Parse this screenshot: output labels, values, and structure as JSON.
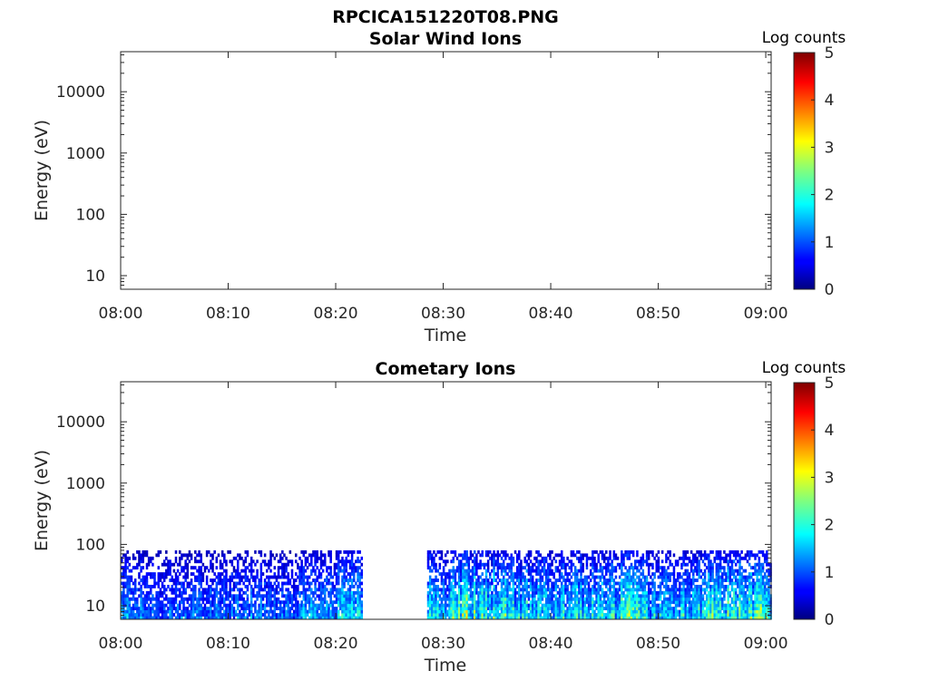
{
  "figure": {
    "title": "RPCICA151220T08.PNG"
  },
  "panels": [
    {
      "title": "Solar Wind Ions",
      "xlabel": "Time",
      "ylabel": "Energy (eV)",
      "colorbar_title": "Log counts"
    },
    {
      "title": "Cometary Ions",
      "xlabel": "Time",
      "ylabel": "Energy (eV)",
      "colorbar_title": "Log counts"
    }
  ],
  "chart_data": [
    {
      "type": "heatmap",
      "title": "Solar Wind Ions",
      "xlabel": "Time",
      "ylabel": "Energy (eV)",
      "x_tick_labels": [
        "08:00",
        "08:10",
        "08:20",
        "08:30",
        "08:40",
        "08:50",
        "09:00"
      ],
      "y_tick_labels": [
        "10",
        "100",
        "1000",
        "10000"
      ],
      "y_tick_values": [
        10,
        100,
        1000,
        10000
      ],
      "yscale": "log",
      "ylim": [
        6,
        45000
      ],
      "xlim_minutes": [
        0,
        60.5
      ],
      "colorbar": {
        "label": "Log counts",
        "ticks": [
          0,
          1,
          2,
          3,
          4,
          5
        ],
        "range": [
          0,
          5
        ],
        "colormap": "jet"
      },
      "data_present": false,
      "series": []
    },
    {
      "type": "heatmap",
      "title": "Cometary Ions",
      "xlabel": "Time",
      "ylabel": "Energy (eV)",
      "x_tick_labels": [
        "08:00",
        "08:10",
        "08:20",
        "08:30",
        "08:40",
        "08:50",
        "09:00"
      ],
      "y_tick_labels": [
        "10",
        "100",
        "1000",
        "10000"
      ],
      "y_tick_values": [
        10,
        100,
        1000,
        10000
      ],
      "yscale": "log",
      "ylim": [
        6,
        45000
      ],
      "xlim_minutes": [
        0,
        60.5
      ],
      "colorbar": {
        "label": "Log counts",
        "ticks": [
          0,
          1,
          2,
          3,
          4,
          5
        ],
        "range": [
          0,
          5
        ],
        "colormap": "jet"
      },
      "data_present": true,
      "energy_range_ev": [
        6,
        80
      ],
      "data_gap_minutes": [
        22.5,
        28.5
      ],
      "time_intervals_minutes": [
        [
          0,
          22.5
        ],
        [
          28.5,
          60.5
        ]
      ],
      "intensity_profile": [
        {
          "minute": 0,
          "log_counts_peak": 1.8
        },
        {
          "minute": 5,
          "log_counts_peak": 1.5
        },
        {
          "minute": 10,
          "log_counts_peak": 1.6
        },
        {
          "minute": 15,
          "log_counts_peak": 1.4
        },
        {
          "minute": 20,
          "log_counts_peak": 2.0
        },
        {
          "minute": 30,
          "log_counts_peak": 2.4
        },
        {
          "minute": 32,
          "log_counts_peak": 3.0
        },
        {
          "minute": 35,
          "log_counts_peak": 2.6
        },
        {
          "minute": 40,
          "log_counts_peak": 2.2
        },
        {
          "minute": 44,
          "log_counts_peak": 2.3
        },
        {
          "minute": 47,
          "log_counts_peak": 2.6
        },
        {
          "minute": 50,
          "log_counts_peak": 2.0
        },
        {
          "minute": 54,
          "log_counts_peak": 2.5
        },
        {
          "minute": 58,
          "log_counts_peak": 3.0
        },
        {
          "minute": 60,
          "log_counts_peak": 2.8
        }
      ]
    }
  ]
}
